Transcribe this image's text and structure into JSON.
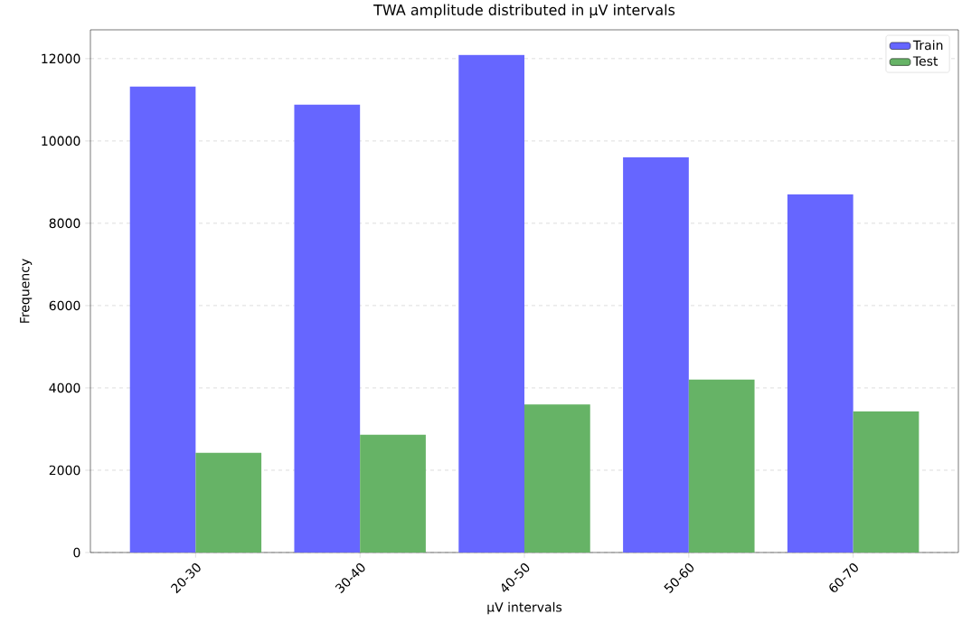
{
  "chart_data": {
    "type": "bar",
    "title": "TWA amplitude distributed in µV intervals",
    "xlabel": "µV intervals",
    "ylabel": "Frequency",
    "categories": [
      "20-30",
      "30-40",
      "40-50",
      "50-60",
      "60-70"
    ],
    "series": [
      {
        "name": "Train",
        "color": "#6666ff",
        "values": [
          11320,
          10880,
          12090,
          9600,
          8700
        ]
      },
      {
        "name": "Test",
        "color": "#66b366",
        "values": [
          2420,
          2860,
          3600,
          4200,
          3430
        ]
      }
    ],
    "ylim": [
      0,
      12700
    ],
    "yticks": [
      0,
      2000,
      4000,
      6000,
      8000,
      10000,
      12000
    ],
    "grid": "y",
    "legend": "top right"
  }
}
